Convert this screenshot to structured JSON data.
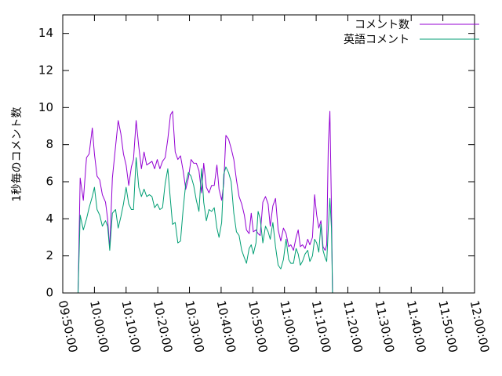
{
  "chart_data": {
    "type": "line",
    "ylabel": "1秒毎のコメント数",
    "xlabel": "",
    "ylim": [
      0,
      15
    ],
    "y_ticks": [
      0,
      2,
      4,
      6,
      8,
      10,
      12,
      14
    ],
    "x_ticks": [
      "09:50:00",
      "10:00:00",
      "10:10:00",
      "10:20:00",
      "10:30:00",
      "10:40:00",
      "10:50:00",
      "11:00:00",
      "11:10:00",
      "11:20:00",
      "11:30:00",
      "11:40:00",
      "11:50:00",
      "12:00:00"
    ],
    "xlim": [
      "09:50:00",
      "12:00:00"
    ],
    "legend_position": "top-right",
    "series": [
      {
        "name": "コメント数",
        "color": "#9400d3",
        "points": [
          [
            "09:54:50",
            0.0
          ],
          [
            "09:55:30",
            6.2
          ],
          [
            "09:56:30",
            5.0
          ],
          [
            "09:57:30",
            7.3
          ],
          [
            "09:58:20",
            7.5
          ],
          [
            "09:59:20",
            8.9
          ],
          [
            "10:00:00",
            7.5
          ],
          [
            "10:00:50",
            6.3
          ],
          [
            "10:01:40",
            6.1
          ],
          [
            "10:02:30",
            5.3
          ],
          [
            "10:03:30",
            4.9
          ],
          [
            "10:04:10",
            4.0
          ],
          [
            "10:04:50",
            2.4
          ],
          [
            "10:05:40",
            6.2
          ],
          [
            "10:06:40",
            7.9
          ],
          [
            "10:07:30",
            9.3
          ],
          [
            "10:08:20",
            8.6
          ],
          [
            "10:09:10",
            7.5
          ],
          [
            "10:10:00",
            6.9
          ],
          [
            "10:10:50",
            5.8
          ],
          [
            "10:11:40",
            6.8
          ],
          [
            "10:12:20",
            7.2
          ],
          [
            "10:13:10",
            9.3
          ],
          [
            "10:14:00",
            7.9
          ],
          [
            "10:14:50",
            6.7
          ],
          [
            "10:15:40",
            7.6
          ],
          [
            "10:16:30",
            6.9
          ],
          [
            "10:17:20",
            7.0
          ],
          [
            "10:18:10",
            7.1
          ],
          [
            "10:19:00",
            6.7
          ],
          [
            "10:19:50",
            7.2
          ],
          [
            "10:20:40",
            6.7
          ],
          [
            "10:21:30",
            7.1
          ],
          [
            "10:22:20",
            7.3
          ],
          [
            "10:23:10",
            8.3
          ],
          [
            "10:24:00",
            9.6
          ],
          [
            "10:24:40",
            9.8
          ],
          [
            "10:25:30",
            7.6
          ],
          [
            "10:26:20",
            7.2
          ],
          [
            "10:27:10",
            7.4
          ],
          [
            "10:28:00",
            6.6
          ],
          [
            "10:28:50",
            5.6
          ],
          [
            "10:29:40",
            6.2
          ],
          [
            "10:30:30",
            7.2
          ],
          [
            "10:31:20",
            7.0
          ],
          [
            "10:32:10",
            7.0
          ],
          [
            "10:33:00",
            6.6
          ],
          [
            "10:33:50",
            5.4
          ],
          [
            "10:34:30",
            7.0
          ],
          [
            "10:35:20",
            5.7
          ],
          [
            "10:36:10",
            5.4
          ],
          [
            "10:37:00",
            5.8
          ],
          [
            "10:37:50",
            5.8
          ],
          [
            "10:38:40",
            6.9
          ],
          [
            "10:39:20",
            5.6
          ],
          [
            "10:40:10",
            5.0
          ],
          [
            "10:40:50",
            5.9
          ],
          [
            "10:41:30",
            8.5
          ],
          [
            "10:42:20",
            8.3
          ],
          [
            "10:43:10",
            7.8
          ],
          [
            "10:44:00",
            7.2
          ],
          [
            "10:44:50",
            6.1
          ],
          [
            "10:45:40",
            5.2
          ],
          [
            "10:46:30",
            4.8
          ],
          [
            "10:47:20",
            4.2
          ],
          [
            "10:48:00",
            3.4
          ],
          [
            "10:48:50",
            3.2
          ],
          [
            "10:49:30",
            4.3
          ],
          [
            "10:50:10",
            3.3
          ],
          [
            "10:51:00",
            3.4
          ],
          [
            "10:51:40",
            3.2
          ],
          [
            "10:52:20",
            3.1
          ],
          [
            "10:53:10",
            4.9
          ],
          [
            "10:54:00",
            5.2
          ],
          [
            "10:54:50",
            4.8
          ],
          [
            "10:55:30",
            3.6
          ],
          [
            "10:56:20",
            4.7
          ],
          [
            "10:57:10",
            5.1
          ],
          [
            "10:58:00",
            3.4
          ],
          [
            "10:58:50",
            2.8
          ],
          [
            "10:59:40",
            3.5
          ],
          [
            "11:00:30",
            3.2
          ],
          [
            "11:01:20",
            2.5
          ],
          [
            "11:02:00",
            2.6
          ],
          [
            "11:02:50",
            2.3
          ],
          [
            "11:03:40",
            3.0
          ],
          [
            "11:04:20",
            3.4
          ],
          [
            "11:05:00",
            2.5
          ],
          [
            "11:05:40",
            2.6
          ],
          [
            "11:06:30",
            2.4
          ],
          [
            "11:07:20",
            2.9
          ],
          [
            "11:08:00",
            2.6
          ],
          [
            "11:08:50",
            3.0
          ],
          [
            "11:09:30",
            5.3
          ],
          [
            "11:10:10",
            4.2
          ],
          [
            "11:10:50",
            3.5
          ],
          [
            "11:11:30",
            3.9
          ],
          [
            "11:12:10",
            2.5
          ],
          [
            "11:12:50",
            2.3
          ],
          [
            "11:13:20",
            2.6
          ],
          [
            "11:13:50",
            8.0
          ],
          [
            "11:14:20",
            9.8
          ],
          [
            "11:14:50",
            4.5
          ],
          [
            "11:15:10",
            0.0
          ]
        ]
      },
      {
        "name": "英語コメント",
        "color": "#009e73",
        "points": [
          [
            "09:54:50",
            0.0
          ],
          [
            "09:55:30",
            4.2
          ],
          [
            "09:56:30",
            3.4
          ],
          [
            "09:57:30",
            4.0
          ],
          [
            "09:58:20",
            4.6
          ],
          [
            "09:59:20",
            5.2
          ],
          [
            "10:00:00",
            5.7
          ],
          [
            "10:00:50",
            4.5
          ],
          [
            "10:01:40",
            4.2
          ],
          [
            "10:02:30",
            3.6
          ],
          [
            "10:03:30",
            3.9
          ],
          [
            "10:04:10",
            3.6
          ],
          [
            "10:04:50",
            2.3
          ],
          [
            "10:05:40",
            4.3
          ],
          [
            "10:06:40",
            4.5
          ],
          [
            "10:07:30",
            3.5
          ],
          [
            "10:08:20",
            4.1
          ],
          [
            "10:09:10",
            4.8
          ],
          [
            "10:10:00",
            5.7
          ],
          [
            "10:10:50",
            4.8
          ],
          [
            "10:11:40",
            4.5
          ],
          [
            "10:12:20",
            4.5
          ],
          [
            "10:13:10",
            7.3
          ],
          [
            "10:14:00",
            5.7
          ],
          [
            "10:14:50",
            5.2
          ],
          [
            "10:15:40",
            5.6
          ],
          [
            "10:16:30",
            5.2
          ],
          [
            "10:17:20",
            5.3
          ],
          [
            "10:18:10",
            5.2
          ],
          [
            "10:19:00",
            4.6
          ],
          [
            "10:19:50",
            4.8
          ],
          [
            "10:20:40",
            4.5
          ],
          [
            "10:21:30",
            4.6
          ],
          [
            "10:22:20",
            5.9
          ],
          [
            "10:23:10",
            6.7
          ],
          [
            "10:24:00",
            5.0
          ],
          [
            "10:24:40",
            3.7
          ],
          [
            "10:25:30",
            3.8
          ],
          [
            "10:26:20",
            2.7
          ],
          [
            "10:27:10",
            2.8
          ],
          [
            "10:28:00",
            4.5
          ],
          [
            "10:28:50",
            5.9
          ],
          [
            "10:29:40",
            6.5
          ],
          [
            "10:30:30",
            6.3
          ],
          [
            "10:31:20",
            5.8
          ],
          [
            "10:32:10",
            5.0
          ],
          [
            "10:33:00",
            4.4
          ],
          [
            "10:33:50",
            6.7
          ],
          [
            "10:34:30",
            4.9
          ],
          [
            "10:35:20",
            3.9
          ],
          [
            "10:36:10",
            4.5
          ],
          [
            "10:37:00",
            4.4
          ],
          [
            "10:37:50",
            4.6
          ],
          [
            "10:38:40",
            3.5
          ],
          [
            "10:39:20",
            3.0
          ],
          [
            "10:40:10",
            3.8
          ],
          [
            "10:40:50",
            6.4
          ],
          [
            "10:41:30",
            6.8
          ],
          [
            "10:42:20",
            6.5
          ],
          [
            "10:43:10",
            6.0
          ],
          [
            "10:44:00",
            4.3
          ],
          [
            "10:44:50",
            3.3
          ],
          [
            "10:45:40",
            3.1
          ],
          [
            "10:46:30",
            2.3
          ],
          [
            "10:47:20",
            1.9
          ],
          [
            "10:48:00",
            1.6
          ],
          [
            "10:48:50",
            2.4
          ],
          [
            "10:49:30",
            2.6
          ],
          [
            "10:50:10",
            2.1
          ],
          [
            "10:51:00",
            2.7
          ],
          [
            "10:51:40",
            4.4
          ],
          [
            "10:52:20",
            4.0
          ],
          [
            "10:53:10",
            2.7
          ],
          [
            "10:54:00",
            3.6
          ],
          [
            "10:54:50",
            3.3
          ],
          [
            "10:55:30",
            2.9
          ],
          [
            "10:56:20",
            3.8
          ],
          [
            "10:57:10",
            2.5
          ],
          [
            "10:58:00",
            1.5
          ],
          [
            "10:58:50",
            1.3
          ],
          [
            "10:59:40",
            1.8
          ],
          [
            "11:00:30",
            2.9
          ],
          [
            "11:01:20",
            1.8
          ],
          [
            "11:02:00",
            1.6
          ],
          [
            "11:02:50",
            1.6
          ],
          [
            "11:03:40",
            2.4
          ],
          [
            "11:04:20",
            2.1
          ],
          [
            "11:05:00",
            1.5
          ],
          [
            "11:05:40",
            1.7
          ],
          [
            "11:06:30",
            2.1
          ],
          [
            "11:07:20",
            2.3
          ],
          [
            "11:08:00",
            1.7
          ],
          [
            "11:08:50",
            2.0
          ],
          [
            "11:09:30",
            2.9
          ],
          [
            "11:10:10",
            2.7
          ],
          [
            "11:10:50",
            2.2
          ],
          [
            "11:11:30",
            3.7
          ],
          [
            "11:12:10",
            2.3
          ],
          [
            "11:12:50",
            1.9
          ],
          [
            "11:13:20",
            1.7
          ],
          [
            "11:13:50",
            3.5
          ],
          [
            "11:14:20",
            5.1
          ],
          [
            "11:14:50",
            3.5
          ],
          [
            "11:15:10",
            0.0
          ]
        ]
      }
    ]
  }
}
